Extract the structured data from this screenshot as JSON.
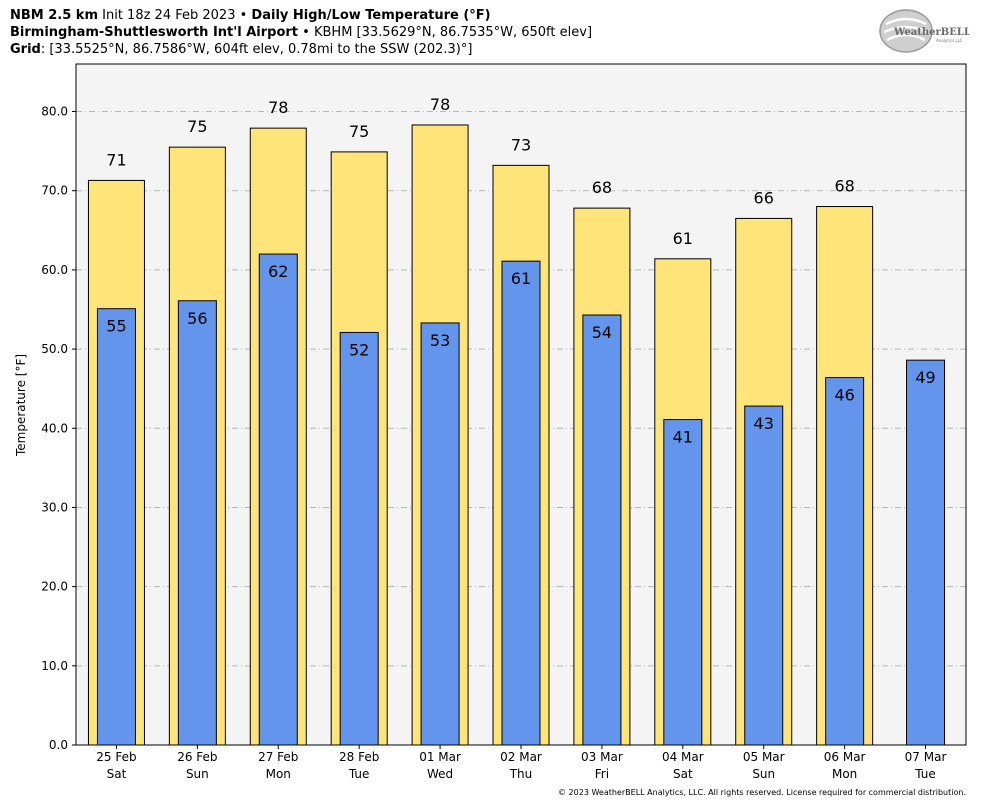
{
  "header": {
    "line1": {
      "model": "NBM 2.5 km",
      "init": "Init 18z 24 Feb 2023",
      "sep": "•",
      "product": "Daily High/Low Temperature (°F)"
    },
    "line2": {
      "station": "Birmingham-Shuttlesworth Int'l Airport",
      "sep": "•",
      "details": "KBHM [33.5629°N, 86.7535°W, 650ft elev]"
    },
    "line3": {
      "label": "Grid",
      "details": ": [33.5525°N, 86.7586°W, 604ft elev, 0.78mi to the SSW (202.3)°]"
    }
  },
  "logo": {
    "text": "WeatherBELL",
    "sub": "Analytics LLC"
  },
  "footer": "© 2023 WeatherBELL Analytics, LLC. All rights reserved. License required for commercial distribution.",
  "chart_data": {
    "type": "bar",
    "categories": [
      "25 Feb Sat",
      "26 Feb Sun",
      "27 Feb Mon",
      "28 Feb Tue",
      "01 Mar Wed",
      "02 Mar Thu",
      "03 Mar Fri",
      "04 Mar Sat",
      "05 Mar Sun",
      "06 Mar Mon",
      "07 Mar Tue"
    ],
    "category_lines": [
      [
        "25 Feb",
        "Sat"
      ],
      [
        "26 Feb",
        "Sun"
      ],
      [
        "27 Feb",
        "Mon"
      ],
      [
        "28 Feb",
        "Tue"
      ],
      [
        "01 Mar",
        "Wed"
      ],
      [
        "02 Mar",
        "Thu"
      ],
      [
        "03 Mar",
        "Fri"
      ],
      [
        "04 Mar",
        "Sat"
      ],
      [
        "05 Mar",
        "Sun"
      ],
      [
        "06 Mar",
        "Mon"
      ],
      [
        "07 Mar",
        "Tue"
      ]
    ],
    "series": [
      {
        "values": [
          71.3,
          75.5,
          77.9,
          74.9,
          78.3,
          73.2,
          67.8,
          61.4,
          66.5,
          68.0,
          null
        ],
        "labels": [
          "71",
          "75",
          "78",
          "75",
          "78",
          "73",
          "68",
          "61",
          "66",
          "68",
          ""
        ],
        "color": "#ffe47a"
      },
      {
        "values": [
          55.1,
          56.1,
          62.0,
          52.1,
          53.3,
          61.1,
          54.3,
          41.1,
          42.8,
          46.4,
          48.6
        ],
        "labels": [
          "55",
          "56",
          "62",
          "52",
          "53",
          "61",
          "54",
          "41",
          "43",
          "46",
          "49"
        ],
        "color": "#6495ed"
      }
    ],
    "ylabel": "Temperature [°F]",
    "ylim": [
      0,
      86
    ],
    "yticks": [
      "0.0",
      "10.0",
      "20.0",
      "30.0",
      "40.0",
      "50.0",
      "60.0",
      "70.0",
      "80.0"
    ],
    "grid": true,
    "background": "#f4f4f4"
  }
}
